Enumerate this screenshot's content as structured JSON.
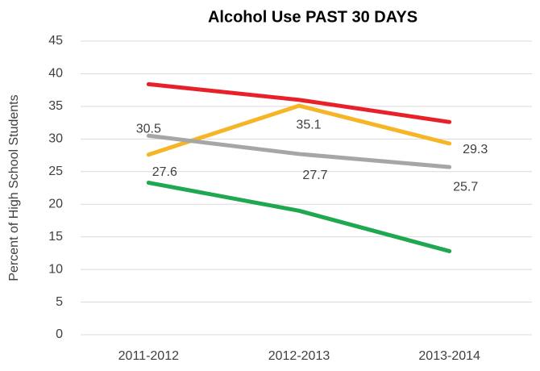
{
  "chart_data": {
    "type": "line",
    "title": "Alcohol Use PAST 30 DAYS",
    "y_label": "Percent of High School Students",
    "categories": [
      "2011-2012",
      "2012-2013",
      "2013-2014"
    ],
    "series": [
      {
        "color": "#e8202a",
        "values": [
          38.4,
          36.0,
          32.6
        ],
        "data_labels": false
      },
      {
        "color": "#f5b526",
        "values": [
          27.6,
          35.1,
          29.3
        ],
        "data_labels": true
      },
      {
        "color": "#a6a6a6",
        "values": [
          30.5,
          27.7,
          25.7
        ],
        "data_labels": true
      },
      {
        "color": "#1fa84f",
        "values": [
          23.3,
          19.0,
          12.8
        ],
        "data_labels": false
      }
    ],
    "ylim": [
      0,
      45
    ],
    "yticks": [
      0,
      5,
      10,
      15,
      20,
      25,
      30,
      35,
      40,
      45
    ],
    "grid": true
  }
}
